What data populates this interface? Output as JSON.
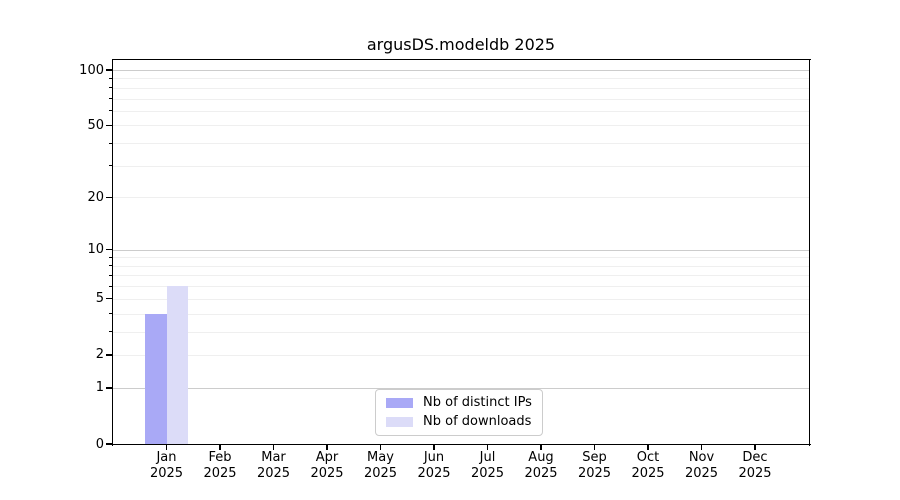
{
  "chart_data": {
    "type": "bar",
    "title": "argusDS.modeldb 2025",
    "x": {
      "categories": [
        "Jan",
        "Feb",
        "Mar",
        "Apr",
        "May",
        "Jun",
        "Jul",
        "Aug",
        "Sep",
        "Oct",
        "Nov",
        "Dec"
      ],
      "year_line": "2025"
    },
    "series": [
      {
        "name": "Nb of distinct IPs",
        "color": "#a9a9f6",
        "values": [
          4,
          0,
          0,
          0,
          0,
          0,
          0,
          0,
          0,
          0,
          0,
          0
        ]
      },
      {
        "name": "Nb of downloads",
        "color": "#dcdcf8",
        "values": [
          6,
          0,
          0,
          0,
          0,
          0,
          0,
          0,
          0,
          0,
          0,
          0
        ]
      }
    ],
    "y_axis": {
      "scale": "log10(value+1)",
      "tick_labels": [
        0,
        1,
        2,
        5,
        10,
        20,
        50,
        100
      ],
      "major_gridlines": [
        1,
        10,
        100
      ],
      "minor_gridlines": [
        2,
        3,
        4,
        5,
        6,
        7,
        8,
        9,
        20,
        30,
        40,
        50,
        60,
        70,
        80,
        90
      ],
      "minor_tick_marks": [
        3,
        4,
        6,
        7,
        8,
        9,
        30,
        40,
        60,
        70,
        80,
        90
      ],
      "max_value": 100,
      "ylim": [
        0,
        100
      ]
    },
    "legend": {
      "position": "bottom-center"
    },
    "grid": "horizontal",
    "colors": {
      "grid_major": "#cccccc",
      "grid_minor": "#efefef",
      "spine": "#000000",
      "tick": "#000000",
      "text": "#000000",
      "legend_border": "#cccccc",
      "background": "#ffffff"
    }
  }
}
